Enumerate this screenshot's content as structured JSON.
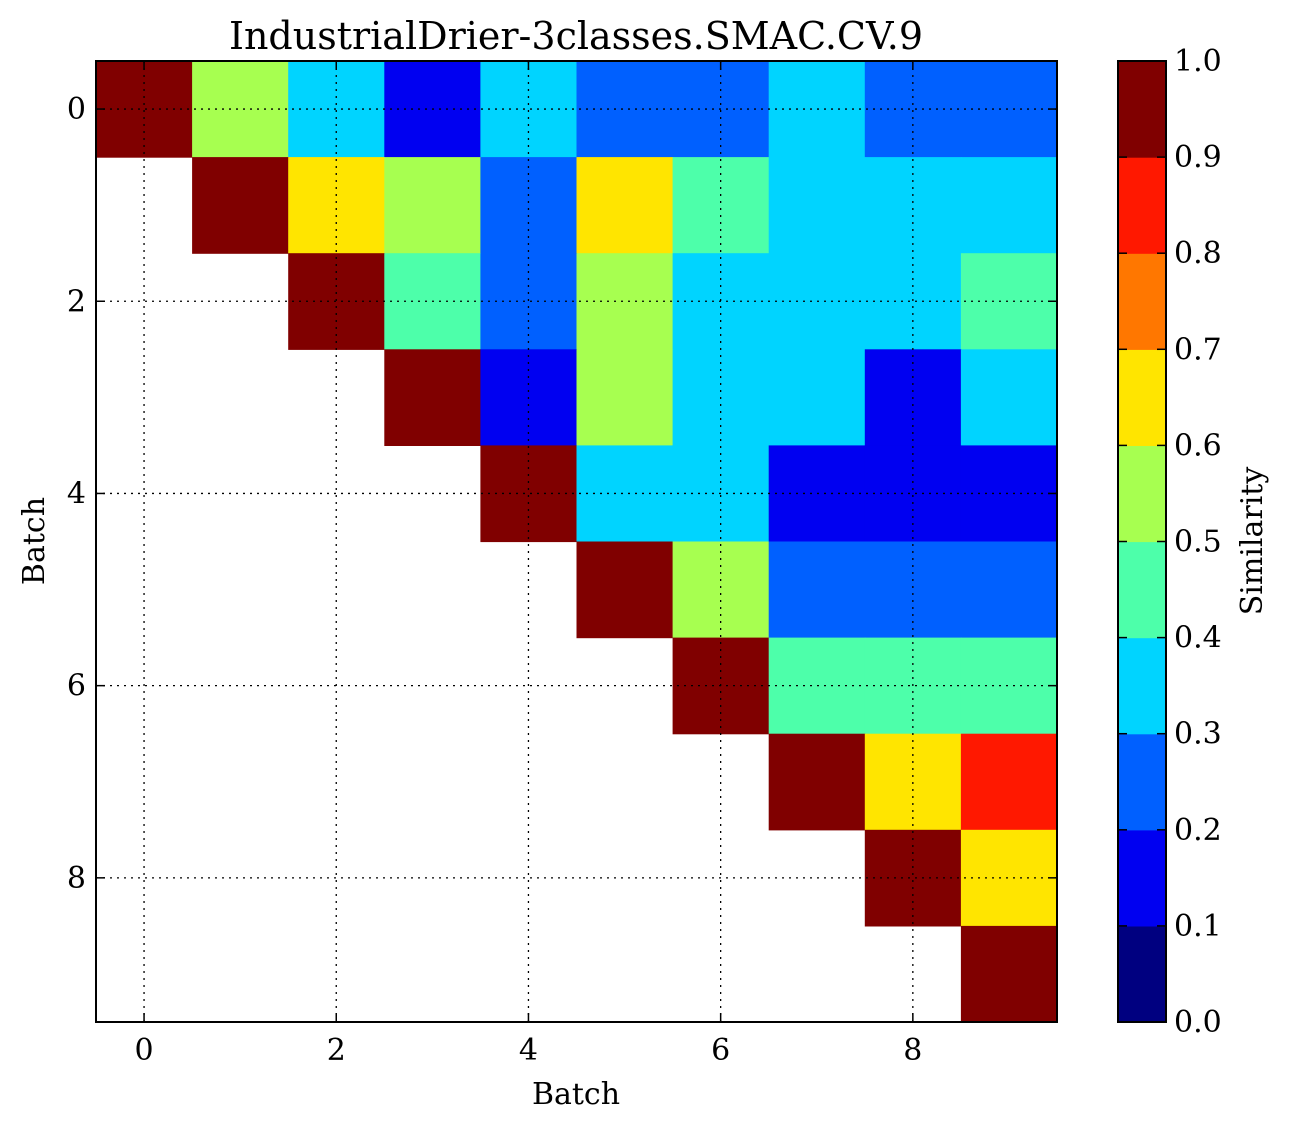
{
  "chart_data": {
    "type": "heatmap",
    "title": "IndustrialDrier-3classes.SMAC.CV.9",
    "xlabel": "Batch",
    "ylabel": "Batch",
    "x_ticks": [
      "0",
      "2",
      "4",
      "6",
      "8"
    ],
    "y_ticks": [
      "0",
      "2",
      "4",
      "6",
      "8"
    ],
    "x_range": [
      -0.5,
      9.5
    ],
    "y_range": [
      -0.5,
      9.5
    ],
    "y_inverted": true,
    "grid": true,
    "colorbar": {
      "label": "Similarity",
      "ticks": [
        "0.0",
        "0.1",
        "0.2",
        "0.3",
        "0.4",
        "0.5",
        "0.6",
        "0.7",
        "0.8",
        "0.9",
        "1.0"
      ],
      "range": [
        0.0,
        1.0
      ],
      "colormap": "jet",
      "bins": 10,
      "bin_colors": [
        "#000080",
        "#0000f1",
        "#0060ff",
        "#00d4ff",
        "#4dffaa",
        "#a7ff50",
        "#ffe500",
        "#ff7700",
        "#ff1800",
        "#800000"
      ]
    },
    "rows": 10,
    "cols": 10,
    "values": [
      [
        1.0,
        0.55,
        0.35,
        0.15,
        0.35,
        0.25,
        0.25,
        0.35,
        0.25,
        0.25
      ],
      [
        null,
        1.0,
        0.65,
        0.55,
        0.25,
        0.65,
        0.45,
        0.35,
        0.35,
        0.35
      ],
      [
        null,
        null,
        1.0,
        0.45,
        0.25,
        0.55,
        0.35,
        0.35,
        0.35,
        0.45
      ],
      [
        null,
        null,
        null,
        1.0,
        0.15,
        0.55,
        0.35,
        0.35,
        0.15,
        0.35
      ],
      [
        null,
        null,
        null,
        null,
        1.0,
        0.35,
        0.35,
        0.15,
        0.15,
        0.15
      ],
      [
        null,
        null,
        null,
        null,
        null,
        1.0,
        0.55,
        0.25,
        0.25,
        0.25
      ],
      [
        null,
        null,
        null,
        null,
        null,
        null,
        1.0,
        0.45,
        0.45,
        0.45
      ],
      [
        null,
        null,
        null,
        null,
        null,
        null,
        null,
        1.0,
        0.65,
        0.85
      ],
      [
        null,
        null,
        null,
        null,
        null,
        null,
        null,
        null,
        1.0,
        0.65
      ],
      [
        null,
        null,
        null,
        null,
        null,
        null,
        null,
        null,
        null,
        1.0
      ]
    ]
  }
}
